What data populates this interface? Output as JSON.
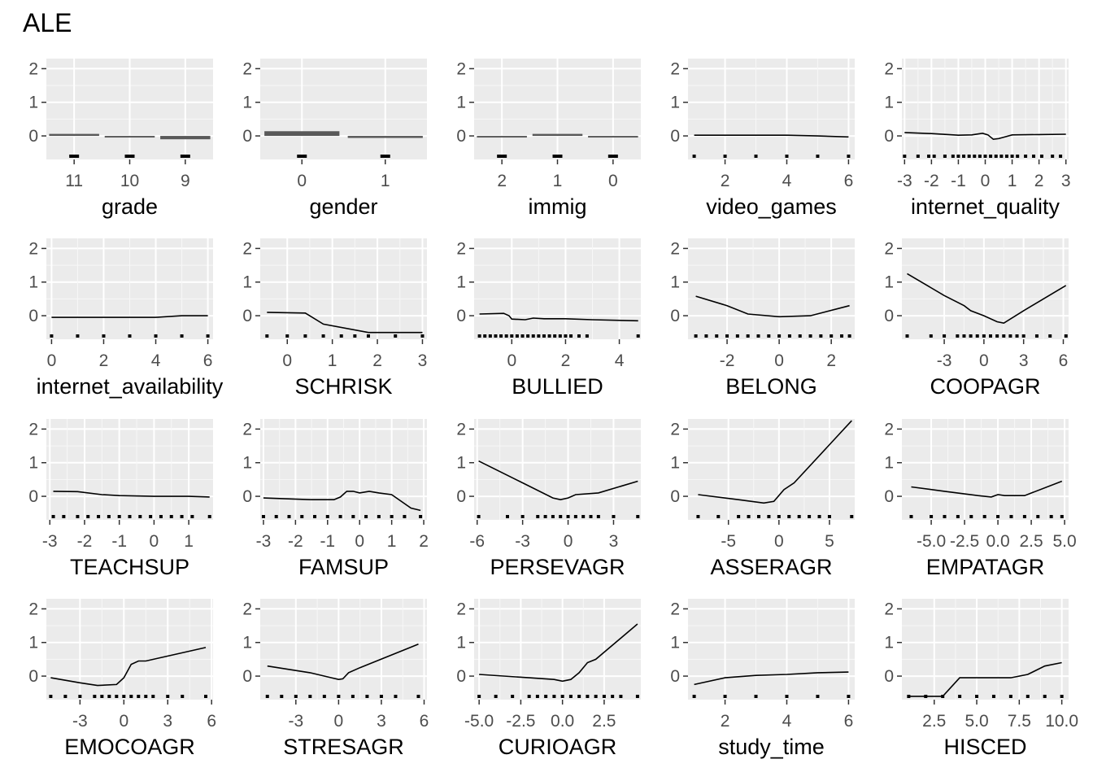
{
  "title": "ALE",
  "chart_data": [
    {
      "type": "bar",
      "xlabel": "grade",
      "categories": [
        "11",
        "10",
        "9"
      ],
      "values": [
        0.06,
        0.0,
        -0.1
      ],
      "ylim": [
        -0.7,
        2.3
      ],
      "yticks": [
        0,
        1,
        2
      ]
    },
    {
      "type": "bar",
      "xlabel": "gender",
      "categories": [
        "0",
        "1"
      ],
      "values": [
        0.14,
        -0.06
      ],
      "ylim": [
        -0.7,
        2.3
      ],
      "yticks": [
        0,
        1,
        2
      ]
    },
    {
      "type": "bar",
      "xlabel": "immig",
      "categories": [
        "2",
        "1",
        "0"
      ],
      "values": [
        0.0,
        0.06,
        0.0
      ],
      "ylim": [
        -0.7,
        2.3
      ],
      "yticks": [
        0,
        1,
        2
      ]
    },
    {
      "type": "line",
      "xlabel": "video_games",
      "xlim": [
        0.8,
        6.2
      ],
      "xticks": [
        2,
        4,
        6
      ],
      "ylim": [
        -0.7,
        2.3
      ],
      "yticks": [
        0,
        1,
        2
      ],
      "x": [
        1,
        2,
        3,
        4,
        5,
        6
      ],
      "y": [
        0.02,
        0.02,
        0.02,
        0.02,
        0.0,
        -0.03
      ],
      "rug": [
        1,
        2,
        3,
        4,
        5,
        6
      ]
    },
    {
      "type": "line",
      "xlabel": "internet_quality",
      "xlim": [
        -3.1,
        3.1
      ],
      "xticks": [
        -3,
        -2,
        -1,
        0,
        1,
        2,
        3
      ],
      "ylim": [
        -0.7,
        2.3
      ],
      "yticks": [
        0,
        1,
        2
      ],
      "x": [
        -3,
        -2,
        -1,
        -0.5,
        -0.1,
        0.1,
        0.3,
        0.5,
        1,
        2,
        3
      ],
      "y": [
        0.1,
        0.07,
        0.02,
        0.03,
        0.08,
        0.03,
        -0.1,
        -0.08,
        0.03,
        0.04,
        0.05
      ],
      "rug": [
        -3,
        -2.5,
        -2.1,
        -1.9,
        -1.5,
        -1.2,
        -1,
        -0.8,
        -0.6,
        -0.4,
        -0.2,
        0,
        0.2,
        0.4,
        0.6,
        0.8,
        1,
        1.2,
        1.5,
        1.8,
        2.1,
        2.5,
        2.8
      ]
    },
    {
      "type": "line",
      "xlabel": "internet_availability",
      "xlim": [
        -0.2,
        6.2
      ],
      "xticks": [
        0,
        2,
        4,
        6
      ],
      "ylim": [
        -0.7,
        2.3
      ],
      "yticks": [
        0,
        1,
        2
      ],
      "x": [
        0,
        1,
        2,
        3,
        4,
        5,
        6
      ],
      "y": [
        -0.05,
        -0.05,
        -0.05,
        -0.05,
        -0.05,
        0.0,
        0.0
      ],
      "rug": [
        0,
        1,
        2,
        3,
        4,
        5,
        6
      ]
    },
    {
      "type": "line",
      "xlabel": "SCHRISK",
      "xlim": [
        -0.6,
        3.1
      ],
      "xticks": [
        0,
        1,
        2,
        3
      ],
      "ylim": [
        -0.7,
        2.3
      ],
      "yticks": [
        0,
        1,
        2
      ],
      "x": [
        -0.45,
        0.4,
        0.8,
        1.8,
        3.0
      ],
      "y": [
        0.1,
        0.08,
        -0.25,
        -0.5,
        -0.5
      ],
      "rug": [
        -0.45,
        0,
        0.4,
        0.8,
        1.2,
        1.5,
        1.8,
        2.4,
        3.0
      ]
    },
    {
      "type": "line",
      "xlabel": "BULLIED",
      "xlim": [
        -1.4,
        4.8
      ],
      "xticks": [
        0,
        2,
        4
      ],
      "ylim": [
        -0.7,
        2.3
      ],
      "yticks": [
        0,
        1,
        2
      ],
      "x": [
        -1.2,
        -0.3,
        -0.1,
        0.0,
        0.5,
        0.8,
        1.2,
        2.0,
        3.0,
        4.7
      ],
      "y": [
        0.05,
        0.07,
        0.0,
        -0.1,
        -0.12,
        -0.07,
        -0.09,
        -0.09,
        -0.12,
        -0.15
      ],
      "rug": [
        -1.2,
        -1.0,
        -0.8,
        -0.6,
        -0.4,
        -0.2,
        0,
        0.2,
        0.4,
        0.6,
        0.8,
        1.0,
        1.2,
        1.4,
        1.6,
        1.8,
        2.0,
        2.2,
        2.5,
        2.8,
        4.7
      ]
    },
    {
      "type": "line",
      "xlabel": "BELONG",
      "xlim": [
        -3.5,
        2.9
      ],
      "xticks": [
        -2,
        0,
        2
      ],
      "ylim": [
        -0.7,
        2.3
      ],
      "yticks": [
        0,
        1,
        2
      ],
      "x": [
        -3.2,
        -2,
        -1.2,
        0,
        1.2,
        2.7
      ],
      "y": [
        0.58,
        0.3,
        0.05,
        -0.03,
        0.0,
        0.3
      ],
      "rug": [
        -3.2,
        -2.8,
        -2.4,
        -2,
        -1.6,
        -1.2,
        -0.8,
        -0.4,
        0,
        0.4,
        0.8,
        1.2,
        1.6,
        2,
        2.4,
        2.7
      ]
    },
    {
      "type": "line",
      "xlabel": "COOPAGR",
      "xlim": [
        -6.2,
        6.4
      ],
      "xticks": [
        -3,
        0,
        3,
        6
      ],
      "ylim": [
        -0.7,
        2.3
      ],
      "yticks": [
        0,
        1,
        2
      ],
      "x": [
        -5.8,
        -3,
        -1.5,
        -1,
        0,
        1,
        1.5,
        3,
        6.2
      ],
      "y": [
        1.25,
        0.6,
        0.3,
        0.15,
        0.0,
        -0.18,
        -0.22,
        0.15,
        0.9
      ],
      "rug": [
        -5.8,
        -4,
        -3,
        -2,
        -1.5,
        -1,
        -0.5,
        0,
        0.5,
        1,
        1.5,
        2,
        2.5,
        3,
        4,
        5,
        6.2
      ]
    },
    {
      "type": "line",
      "xlabel": "TEACHSUP",
      "xlim": [
        -3.1,
        1.7
      ],
      "xticks": [
        -3,
        -2,
        -1,
        0,
        1
      ],
      "ylim": [
        -0.7,
        2.3
      ],
      "yticks": [
        0,
        1,
        2
      ],
      "x": [
        -2.9,
        -2.2,
        -1.5,
        -1,
        0,
        1,
        1.6
      ],
      "y": [
        0.15,
        0.14,
        0.05,
        0.02,
        0.0,
        0.0,
        -0.02
      ],
      "rug": [
        -2.9,
        -2.6,
        -2.2,
        -1.9,
        -1.6,
        -1.3,
        -1.0,
        -0.7,
        -0.4,
        -0.1,
        0.2,
        0.5,
        0.8,
        1.1,
        1.6
      ]
    },
    {
      "type": "line",
      "xlabel": "FAMSUP",
      "xlim": [
        -3.1,
        2.1
      ],
      "xticks": [
        -3,
        -2,
        -1,
        0,
        1,
        2
      ],
      "ylim": [
        -0.7,
        2.3
      ],
      "yticks": [
        0,
        1,
        2
      ],
      "x": [
        -3,
        -1.5,
        -0.8,
        -0.6,
        -0.4,
        -0.2,
        0,
        0.3,
        0.6,
        1.0,
        1.6,
        1.9
      ],
      "y": [
        -0.05,
        -0.1,
        -0.1,
        -0.02,
        0.15,
        0.15,
        0.1,
        0.15,
        0.1,
        0.05,
        -0.35,
        -0.42
      ],
      "rug": [
        -3,
        -2.6,
        -2.2,
        -1.8,
        -1.4,
        -1,
        -0.6,
        -0.2,
        0.2,
        0.6,
        1,
        1.4,
        1.9
      ]
    },
    {
      "type": "line",
      "xlabel": "PERSEVAGR",
      "xlim": [
        -6.2,
        4.8
      ],
      "xticks": [
        -6,
        -3,
        0,
        3
      ],
      "ylim": [
        -0.7,
        2.3
      ],
      "yticks": [
        0,
        1,
        2
      ],
      "x": [
        -5.9,
        -3,
        -1,
        -0.5,
        0,
        0.5,
        2,
        4.6
      ],
      "y": [
        1.05,
        0.4,
        -0.05,
        -0.1,
        -0.05,
        0.05,
        0.1,
        0.45
      ],
      "rug": [
        -5.9,
        -4,
        -3,
        -2,
        -1.5,
        -1,
        -0.5,
        0,
        0.5,
        1,
        1.5,
        2,
        3,
        4.6
      ]
    },
    {
      "type": "line",
      "xlabel": "ASSERAGR",
      "xlim": [
        -9,
        7.5
      ],
      "xticks": [
        -5,
        0,
        5
      ],
      "ylim": [
        -0.7,
        2.3
      ],
      "yticks": [
        0,
        1,
        2
      ],
      "x": [
        -8,
        -4,
        -1.5,
        -0.5,
        0.5,
        1.5,
        7.2
      ],
      "y": [
        0.05,
        -0.1,
        -0.2,
        -0.15,
        0.2,
        0.4,
        2.25
      ],
      "rug": [
        -8,
        -6,
        -4,
        -3,
        -2,
        -1,
        0,
        1,
        2,
        3,
        4,
        5,
        7.2
      ]
    },
    {
      "type": "line",
      "xlabel": "EMPATAGR",
      "xlim": [
        -7.2,
        5.3
      ],
      "xticks": [
        -5,
        -2.5,
        0,
        2.5,
        5
      ],
      "tick_labels": [
        "-5.0",
        "-2.5",
        "0.0",
        "2.5",
        "5.0"
      ],
      "ylim": [
        -0.7,
        2.3
      ],
      "yticks": [
        0,
        1,
        2
      ],
      "x": [
        -6.5,
        -4,
        -1.5,
        -0.5,
        0,
        0.5,
        2,
        4.8
      ],
      "y": [
        0.28,
        0.15,
        0.02,
        -0.02,
        0.05,
        0.02,
        0.02,
        0.45
      ],
      "rug": [
        -6.5,
        -5,
        -4,
        -3,
        -2,
        -1,
        0,
        1,
        2,
        3,
        4,
        4.8
      ]
    },
    {
      "type": "line",
      "xlabel": "EMOCOAGR",
      "xlim": [
        -5.3,
        6.1
      ],
      "xticks": [
        -3,
        0,
        3,
        6
      ],
      "ylim": [
        -0.7,
        2.3
      ],
      "yticks": [
        0,
        1,
        2
      ],
      "x": [
        -5,
        -3,
        -1.8,
        -0.5,
        0,
        0.5,
        1,
        1.5,
        5.6
      ],
      "y": [
        -0.05,
        -0.2,
        -0.28,
        -0.25,
        -0.05,
        0.35,
        0.45,
        0.45,
        0.85
      ],
      "rug": [
        -5,
        -4,
        -3,
        -2,
        -1.5,
        -1,
        -0.5,
        0,
        0.5,
        1,
        1.5,
        2,
        3,
        4,
        5.6
      ]
    },
    {
      "type": "line",
      "xlabel": "STRESAGR",
      "xlim": [
        -5.5,
        6.2
      ],
      "xticks": [
        -3,
        0,
        3,
        6
      ],
      "ylim": [
        -0.7,
        2.3
      ],
      "yticks": [
        0,
        1,
        2
      ],
      "x": [
        -5,
        -2,
        -0.5,
        0,
        0.3,
        0.7,
        1.5,
        5.6
      ],
      "y": [
        0.3,
        0.1,
        -0.05,
        -0.1,
        -0.08,
        0.1,
        0.25,
        0.95
      ],
      "rug": [
        -5,
        -4,
        -3,
        -2,
        -1,
        0,
        1,
        2,
        3,
        4,
        5.6
      ]
    },
    {
      "type": "line",
      "xlabel": "CURIOAGR",
      "xlim": [
        -5.3,
        4.7
      ],
      "xticks": [
        -5,
        -2.5,
        0,
        2.5
      ],
      "tick_labels": [
        "-5.0",
        "-2.5",
        "0.0",
        "2.5"
      ],
      "ylim": [
        -0.7,
        2.3
      ],
      "yticks": [
        0,
        1,
        2
      ],
      "x": [
        -5,
        -2,
        -0.5,
        0,
        0.5,
        1,
        1.5,
        2,
        4.5
      ],
      "y": [
        0.05,
        -0.05,
        -0.1,
        -0.15,
        -0.1,
        0.1,
        0.4,
        0.5,
        1.55
      ],
      "rug": [
        -5,
        -4,
        -3,
        -2,
        -1.5,
        -1,
        -0.5,
        0,
        0.5,
        1,
        1.5,
        2,
        2.5,
        3,
        3.5,
        4.5
      ]
    },
    {
      "type": "line",
      "xlabel": "study_time",
      "xlim": [
        0.8,
        6.2
      ],
      "xticks": [
        2,
        4,
        6
      ],
      "ylim": [
        -0.7,
        2.3
      ],
      "yticks": [
        0,
        1,
        2
      ],
      "x": [
        1,
        2,
        3,
        4,
        5,
        6
      ],
      "y": [
        -0.25,
        -0.05,
        0.02,
        0.05,
        0.1,
        0.12
      ],
      "rug": [
        1,
        2,
        3,
        4,
        5,
        6
      ]
    },
    {
      "type": "line",
      "xlabel": "HISCED",
      "xlim": [
        0.6,
        10.4
      ],
      "xticks": [
        2.5,
        5,
        7.5,
        10
      ],
      "tick_labels": [
        "2.5",
        "5.0",
        "7.5",
        "10.0"
      ],
      "ylim": [
        -0.7,
        2.3
      ],
      "yticks": [
        0,
        1,
        2
      ],
      "x": [
        1,
        2,
        3,
        4,
        5,
        6,
        7,
        8,
        9,
        10
      ],
      "y": [
        -0.6,
        -0.6,
        -0.6,
        -0.05,
        -0.05,
        -0.05,
        -0.05,
        0.05,
        0.3,
        0.4
      ],
      "rug": [
        1,
        2,
        3,
        4,
        5,
        6,
        7,
        8,
        9,
        10
      ]
    }
  ]
}
